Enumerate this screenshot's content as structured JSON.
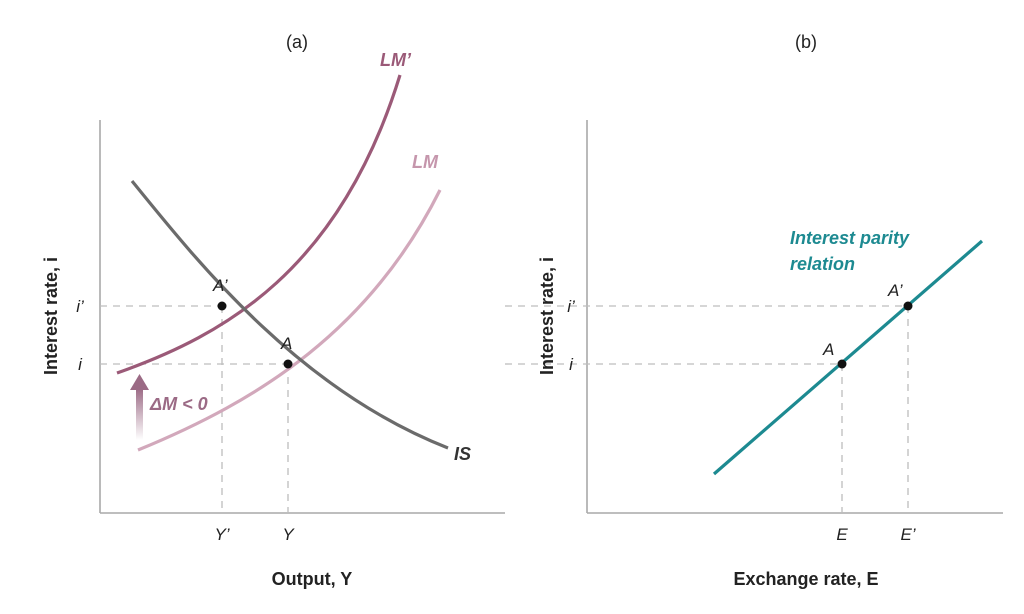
{
  "panel_a": {
    "title": "(a)",
    "ylabel": "Interest rate, i",
    "xlabel": "Output, Y",
    "y_ticks": [
      "i’",
      "i"
    ],
    "x_ticks": [
      "Y’",
      "Y"
    ],
    "curves": {
      "lm_new": "LM’",
      "lm": "LM",
      "is": "IS"
    },
    "points": {
      "a_prime": "A’",
      "a": "A"
    },
    "shift_label": "ΔM < 0"
  },
  "panel_b": {
    "title": "(b)",
    "ylabel": "Interest rate, i",
    "xlabel": "Exchange rate, E",
    "y_ticks": [
      "i’",
      "i"
    ],
    "x_ticks": [
      "E",
      "E’"
    ],
    "relation_label_line1": "Interest parity",
    "relation_label_line2": "relation",
    "points": {
      "a": "A",
      "a_prime": "A’"
    }
  },
  "colors": {
    "lm_new": "#9b5a78",
    "lm": "#d2a8bb",
    "is": "#6b6b6b",
    "interest_parity": "#1d8a91",
    "arrow": "#9b6a85"
  }
}
